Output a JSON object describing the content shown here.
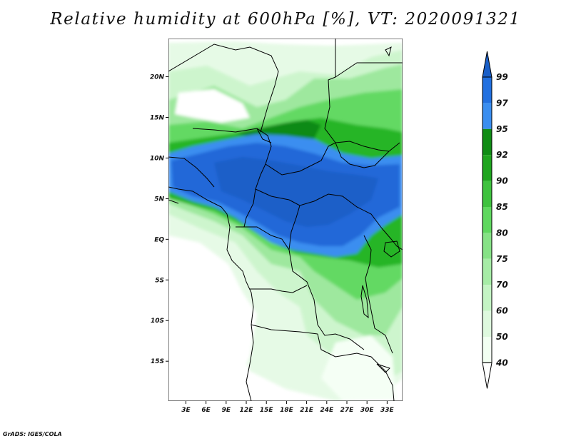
{
  "title": "Relative humidity at 600hPa [%], VT: 2020091321",
  "footer": "GrADS: IGES/COLA",
  "map": {
    "region": "Central Africa",
    "lat_labels": [
      "20N",
      "15N",
      "10N",
      "5N",
      "EQ",
      "5S",
      "10S",
      "15S"
    ],
    "lat_values": [
      20,
      15,
      10,
      5,
      0,
      -5,
      -10,
      -15
    ],
    "lon_labels": [
      "3E",
      "6E",
      "9E",
      "12E",
      "15E",
      "18E",
      "21E",
      "24E",
      "27E",
      "30E",
      "33E"
    ],
    "lon_values": [
      3,
      6,
      9,
      12,
      15,
      18,
      21,
      24,
      27,
      30,
      33
    ]
  },
  "colorbar": {
    "labels": [
      "99",
      "97",
      "95",
      "92",
      "90",
      "85",
      "80",
      "75",
      "70",
      "60",
      "50",
      "40"
    ],
    "colors": [
      "#1f64d2",
      "#2170e0",
      "#3a8ef0",
      "#0f8c14",
      "#1ea51e",
      "#3ec23e",
      "#5fd85f",
      "#86e286",
      "#a6eca6",
      "#c4f4c4",
      "#def9de",
      "#f2fff2",
      "#ffffff"
    ],
    "top_color": "#1a5fc8"
  },
  "colors": {
    "land_background": "#ffffff",
    "border_line": "#000000"
  }
}
